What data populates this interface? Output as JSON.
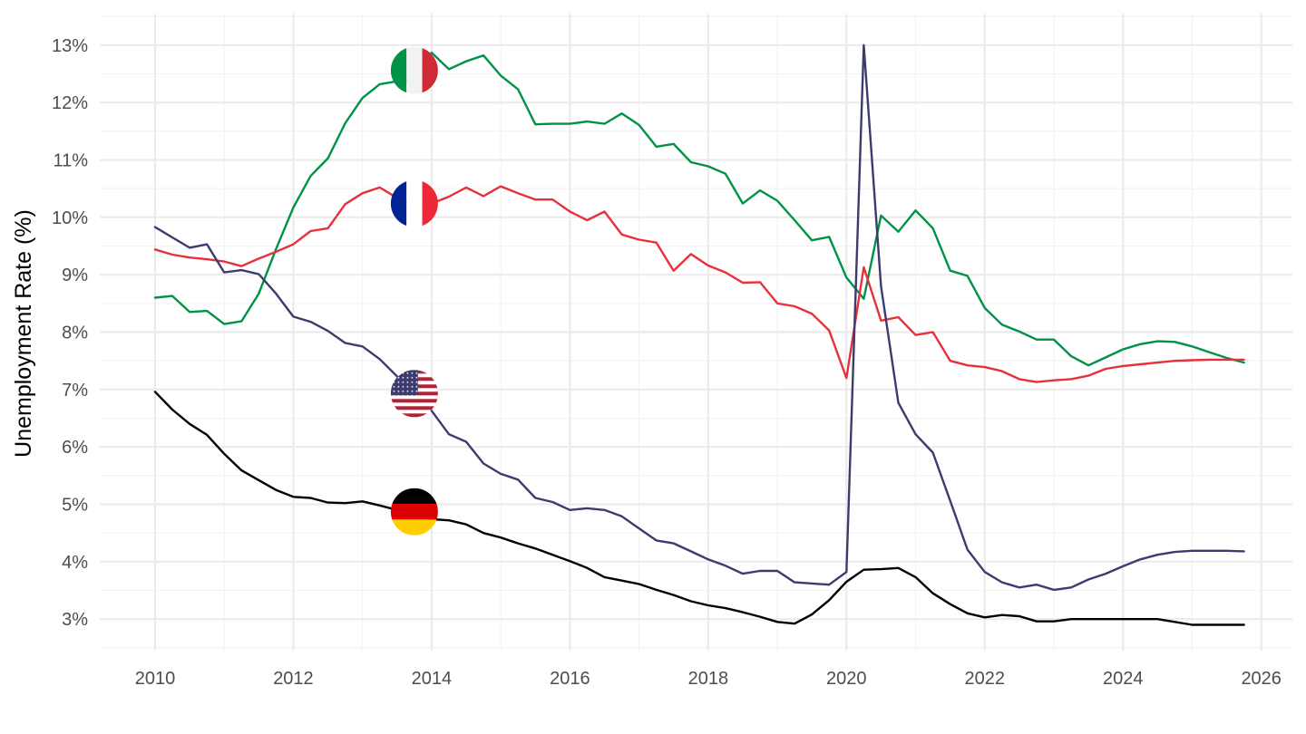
{
  "chart_data": {
    "type": "line",
    "title": "",
    "xlabel": "",
    "ylabel": "Unemployment Rate (%)",
    "xlim": [
      2009.2,
      2026.45
    ],
    "ylim": [
      2.45,
      13.55
    ],
    "x_ticks": [
      "2010",
      "2012",
      "2014",
      "2016",
      "2018",
      "2020",
      "2022",
      "2024",
      "2026"
    ],
    "y_ticks": [
      "3%",
      "4%",
      "5%",
      "6%",
      "7%",
      "8%",
      "9%",
      "10%",
      "11%",
      "12%",
      "13%"
    ],
    "grid": true,
    "legend": "flag markers placed on each series near 2013.75",
    "x_start": 2010.0,
    "x_step": 0.25,
    "series": [
      {
        "country": "Italy",
        "flag": "italy-flag",
        "color": "#009246",
        "values": [
          8.6,
          8.63,
          8.35,
          8.37,
          8.14,
          8.19,
          8.67,
          9.45,
          10.17,
          10.72,
          11.03,
          11.64,
          12.08,
          12.32,
          12.37,
          12.38,
          12.87,
          12.58,
          12.72,
          12.82,
          12.47,
          12.23,
          11.62,
          11.63,
          11.63,
          11.67,
          11.63,
          11.81,
          11.61,
          11.23,
          11.28,
          10.96,
          10.89,
          10.76,
          10.24,
          10.47,
          10.29,
          9.95,
          9.6,
          9.66,
          8.95,
          8.58,
          10.03,
          9.75,
          10.12,
          9.81,
          9.07,
          8.98,
          8.42,
          8.13,
          8.01,
          7.87,
          7.87,
          7.58,
          7.42,
          7.56,
          7.7,
          7.79,
          7.84,
          7.83,
          7.75,
          7.65,
          7.55,
          7.47
        ]
      },
      {
        "country": "France",
        "flag": "france-flag",
        "color": "#e8303d",
        "values": [
          9.44,
          9.35,
          9.3,
          9.27,
          9.23,
          9.15,
          9.28,
          9.4,
          9.53,
          9.76,
          9.81,
          10.23,
          10.42,
          10.52,
          10.34,
          10.22,
          10.24,
          10.36,
          10.52,
          10.37,
          10.54,
          10.42,
          10.31,
          10.31,
          10.1,
          9.95,
          10.1,
          9.7,
          9.61,
          9.56,
          9.07,
          9.36,
          9.16,
          9.04,
          8.86,
          8.87,
          8.5,
          8.45,
          8.32,
          8.03,
          7.2,
          9.13,
          8.2,
          8.26,
          7.95,
          8.0,
          7.5,
          7.42,
          7.39,
          7.32,
          7.18,
          7.13,
          7.16,
          7.18,
          7.24,
          7.36,
          7.41,
          7.44,
          7.47,
          7.5,
          7.51,
          7.52,
          7.52,
          7.52
        ]
      },
      {
        "country": "United States",
        "flag": "usa-flag",
        "color": "#3c3b6e",
        "values": [
          9.83,
          9.65,
          9.47,
          9.53,
          9.04,
          9.08,
          9.01,
          8.67,
          8.27,
          8.18,
          8.02,
          7.81,
          7.75,
          7.53,
          7.23,
          6.93,
          6.63,
          6.22,
          6.09,
          5.71,
          5.53,
          5.43,
          5.11,
          5.04,
          4.9,
          4.93,
          4.9,
          4.79,
          4.58,
          4.37,
          4.32,
          4.18,
          4.04,
          3.93,
          3.79,
          3.84,
          3.84,
          3.64,
          3.62,
          3.6,
          3.82,
          13.0,
          8.8,
          6.77,
          6.22,
          5.9,
          5.06,
          4.21,
          3.82,
          3.64,
          3.55,
          3.6,
          3.51,
          3.55,
          3.69,
          3.79,
          3.92,
          4.04,
          4.12,
          4.17,
          4.19,
          4.19,
          4.19,
          4.18
        ]
      },
      {
        "country": "Germany",
        "flag": "germany-flag",
        "color": "#000000",
        "values": [
          6.96,
          6.65,
          6.4,
          6.21,
          5.88,
          5.59,
          5.42,
          5.25,
          5.13,
          5.11,
          5.03,
          5.02,
          5.05,
          4.98,
          4.9,
          4.84,
          4.74,
          4.72,
          4.65,
          4.5,
          4.42,
          4.32,
          4.23,
          4.12,
          4.01,
          3.89,
          3.73,
          3.67,
          3.61,
          3.51,
          3.42,
          3.31,
          3.24,
          3.19,
          3.12,
          3.04,
          2.95,
          2.92,
          3.08,
          3.33,
          3.65,
          3.86,
          3.87,
          3.89,
          3.73,
          3.45,
          3.26,
          3.1,
          3.03,
          3.07,
          3.05,
          2.96,
          2.96,
          3.0,
          3.0,
          3.0,
          3.0,
          3.0,
          3.0,
          2.95,
          2.9,
          2.9,
          2.9,
          2.9
        ]
      }
    ],
    "markers": [
      {
        "flag": "italy-flag",
        "x": 2013.75,
        "y": 12.56
      },
      {
        "flag": "france-flag",
        "x": 2013.75,
        "y": 10.24
      },
      {
        "flag": "usa-flag",
        "x": 2013.75,
        "y": 6.93
      },
      {
        "flag": "germany-flag",
        "x": 2013.75,
        "y": 4.87
      }
    ]
  }
}
